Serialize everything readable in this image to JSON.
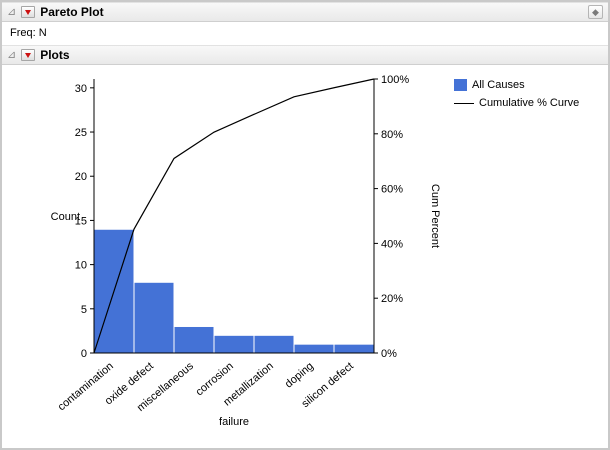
{
  "window": {
    "title": "Pareto Plot",
    "freq_label": "Freq: N",
    "plots_title": "Plots",
    "corner_icon_glyph": "◆"
  },
  "icons": {
    "disclosure_glyph": "⊿"
  },
  "legend": {
    "items": [
      {
        "label": "All Causes",
        "color": "#4472d6",
        "type": "swatch"
      },
      {
        "label": "Cumulative % Curve",
        "color": "#000000",
        "type": "line"
      }
    ]
  },
  "chart_data": {
    "type": "bar",
    "title": "",
    "categories": [
      "contamination",
      "oxide defect",
      "miscellaneous",
      "corrosion",
      "metallization",
      "doping",
      "silicon defect"
    ],
    "values": [
      14,
      8,
      3,
      2,
      2,
      1,
      1
    ],
    "cumulative_percent": [
      45.2,
      71.0,
      80.6,
      87.1,
      93.5,
      96.8,
      100
    ],
    "total_count": 31,
    "xlabel": "failure",
    "ylabel_left": "Count",
    "ylabel_right": "Cum Percent",
    "ylim_left": [
      0,
      31
    ],
    "yticks_left": [
      0,
      5,
      10,
      15,
      20,
      25,
      30
    ],
    "yticks_right": [
      "0%",
      "20%",
      "40%",
      "60%",
      "80%",
      "100%"
    ],
    "bar_color": "#4472d6",
    "curve_color": "#000000",
    "grid": false,
    "legend_position": "right"
  }
}
